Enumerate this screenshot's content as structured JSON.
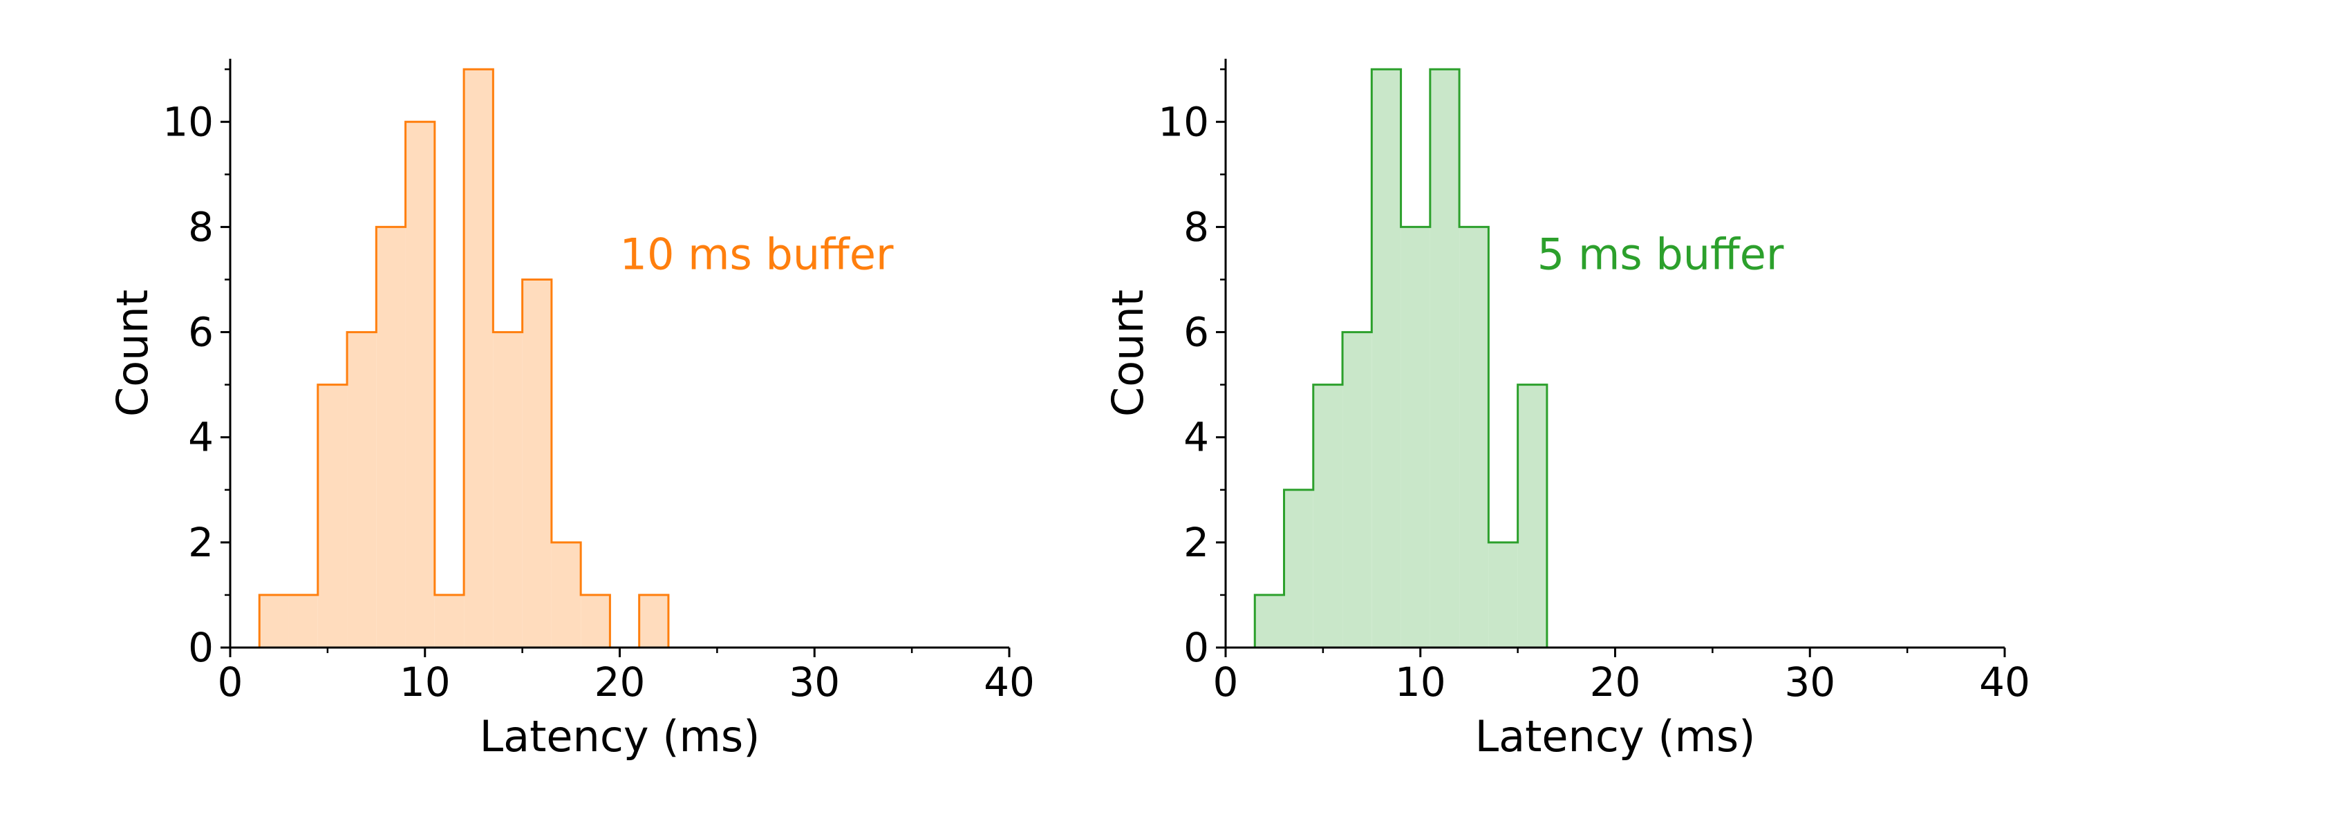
{
  "chart_data": [
    {
      "type": "histogram",
      "xlabel": "Latency (ms)",
      "ylabel": "Count",
      "xlim": [
        0,
        40
      ],
      "ylim": [
        0,
        11.2
      ],
      "xticks": [
        0,
        10,
        20,
        30,
        40
      ],
      "yticks": [
        0,
        2,
        4,
        6,
        8,
        10
      ],
      "grid": false,
      "annotation": {
        "text": "10 ms buffer",
        "x": 20,
        "y": 7.2
      },
      "color": "#ff7f0e",
      "fill": "#ffdcbd",
      "bin_edges": [
        1.5,
        3.0,
        4.5,
        6.0,
        7.5,
        9.0,
        10.5,
        12.0,
        13.5,
        15.0,
        16.5,
        18.0,
        19.5,
        21.0,
        22.5
      ],
      "counts": [
        1,
        1,
        5,
        6,
        8,
        10,
        1,
        11,
        6,
        7,
        2,
        1,
        0,
        1
      ]
    },
    {
      "type": "histogram",
      "xlabel": "Latency (ms)",
      "ylabel": "Count",
      "xlim": [
        0,
        40
      ],
      "ylim": [
        0,
        11.2
      ],
      "xticks": [
        0,
        10,
        20,
        30,
        40
      ],
      "yticks": [
        0,
        2,
        4,
        6,
        8,
        10
      ],
      "grid": false,
      "annotation": {
        "text": "5 ms buffer",
        "x": 16,
        "y": 7.2
      },
      "color": "#2ca02c",
      "fill": "#c9e7c9",
      "bin_edges": [
        1.5,
        3.0,
        4.5,
        6.0,
        7.5,
        9.0,
        10.5,
        12.0,
        13.5,
        15.0,
        16.5
      ],
      "counts": [
        1,
        3,
        5,
        6,
        11,
        8,
        11,
        8,
        2,
        5
      ]
    }
  ]
}
